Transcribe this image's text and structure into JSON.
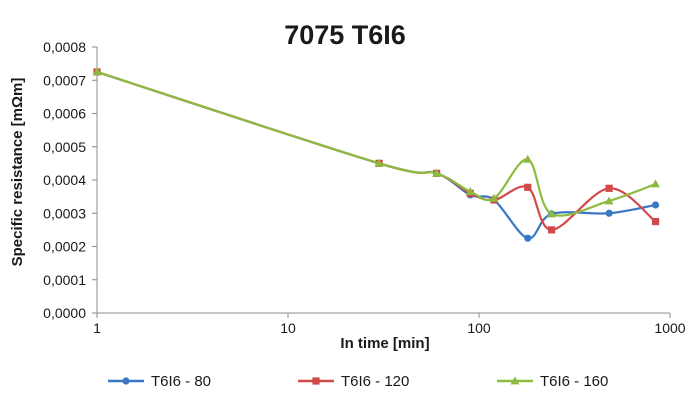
{
  "chart_data": {
    "type": "line",
    "title": "7075 T6I6",
    "xlabel": "In time [min]",
    "ylabel": "Specific resistance [mΩm]",
    "x_scale": "log",
    "xlim": [
      1,
      1000
    ],
    "ylim": [
      0,
      0.0008
    ],
    "grid": false,
    "legend_position": "bottom",
    "x_tick_labels": [
      "1",
      "10",
      "100",
      "1000"
    ],
    "y_tick_labels": [
      "0,0000",
      "0,0001",
      "0,0002",
      "0,0003",
      "0,0004",
      "0,0005",
      "0,0006",
      "0,0007",
      "0,0008"
    ],
    "series": [
      {
        "name": "T6I6 - 80",
        "color": "#3b78c3",
        "marker": "circle",
        "x": [
          1,
          30,
          60,
          90,
          120,
          180,
          240,
          480,
          840
        ],
        "values": [
          0.000725,
          0.00045,
          0.00042,
          0.000355,
          0.00034,
          0.000225,
          0.000298,
          0.0003,
          0.000325
        ]
      },
      {
        "name": "T6I6 - 120",
        "color": "#d2494a",
        "marker": "square",
        "x": [
          1,
          30,
          60,
          90,
          120,
          180,
          240,
          480,
          840
        ],
        "values": [
          0.000725,
          0.00045,
          0.00042,
          0.00036,
          0.00034,
          0.000378,
          0.00025,
          0.000375,
          0.000275
        ]
      },
      {
        "name": "T6I6 - 160",
        "color": "#8dbb3f",
        "marker": "triangle",
        "x": [
          1,
          30,
          60,
          90,
          120,
          180,
          240,
          480,
          840
        ],
        "values": [
          0.000725,
          0.00045,
          0.00042,
          0.000365,
          0.000345,
          0.000462,
          0.000298,
          0.000337,
          0.000388
        ]
      }
    ]
  }
}
